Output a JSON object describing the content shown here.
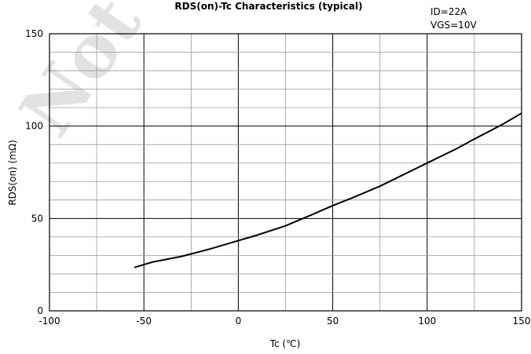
{
  "watermark": "Not Recommended",
  "chart_data": {
    "type": "line",
    "title": "RDS(on)-Tc Characteristics (typical)",
    "conditions": [
      "ID=22A",
      "VGS=10V"
    ],
    "xlabel": "Tc (℃)",
    "ylabel": "RDS(on) (mΩ)",
    "xlim": [
      -100,
      150
    ],
    "ylim": [
      0,
      150
    ],
    "xticks": [
      "-100",
      "-50",
      "0",
      "50",
      "100",
      "150"
    ],
    "yticks": [
      "0",
      "50",
      "100",
      "150"
    ],
    "x_minor_step": 25,
    "y_minor_step": 10,
    "grid": true,
    "series": [
      {
        "x": [
          -55,
          -45,
          -30,
          -15,
          0,
          10,
          25,
          40,
          50,
          60,
          75,
          90,
          100,
          115,
          125,
          140,
          150
        ],
        "y": [
          23.5,
          26.5,
          29.5,
          33.5,
          38,
          41,
          46,
          52.5,
          57,
          61,
          67.5,
          75,
          80,
          87.5,
          93,
          101,
          107
        ]
      }
    ],
    "line_color": "#000000"
  }
}
